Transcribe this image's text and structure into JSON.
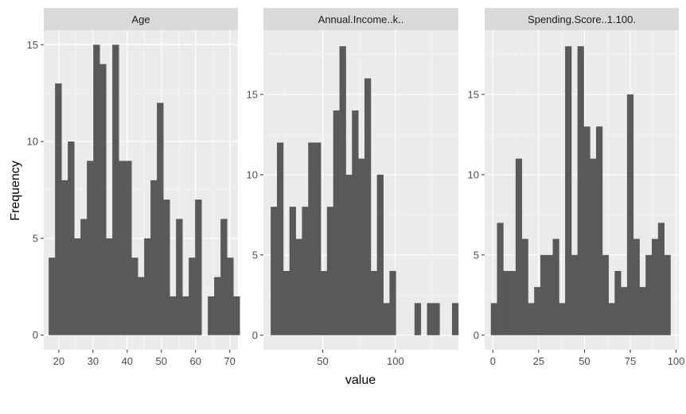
{
  "chart_data": {
    "type": "bar",
    "ylabel": "Frequency",
    "xlabel": "value",
    "grid": true,
    "colors": {
      "bar": "#595959",
      "panel": "#ebebeb",
      "strip": "#d9d9d9",
      "grid_major": "#ffffff",
      "grid_minor": "#f5f5f5",
      "tick": "#333333"
    },
    "panels": [
      {
        "title": "Age",
        "xlim": [
          15.6,
          72.4
        ],
        "ylim": [
          -0.75,
          15.75
        ],
        "xticks": [
          20,
          30,
          40,
          50,
          60,
          70
        ],
        "yticks": [
          0,
          5,
          10,
          15
        ],
        "bin_start": 17.0328,
        "bin_width": 1.8621,
        "counts": [
          4,
          13,
          8,
          10,
          5,
          6,
          9,
          15,
          14,
          5,
          15,
          9,
          9,
          4,
          3,
          5,
          8,
          12,
          7,
          2,
          6,
          2,
          4,
          7,
          0,
          2,
          3,
          6,
          4,
          2
        ]
      },
      {
        "title": "Annual.Income..k..",
        "xlim": [
          9.2,
          143.3
        ],
        "ylim": [
          -0.9,
          19.0
        ],
        "xticks": [
          50,
          100
        ],
        "yticks": [
          0,
          5,
          10,
          15
        ],
        "bin_start": 14.2,
        "bin_width": 4.3,
        "counts": [
          8,
          12,
          4,
          8,
          6,
          8,
          12,
          12,
          4,
          8,
          14,
          18,
          10,
          14,
          11,
          16,
          4,
          10,
          2,
          4,
          0,
          0,
          0,
          2,
          0,
          2,
          2,
          0,
          0,
          2
        ]
      },
      {
        "title": "Spending.Score..1.100.",
        "xlim": [
          -4.5,
          101.5
        ],
        "ylim": [
          -0.9,
          19.0
        ],
        "xticks": [
          0,
          25,
          50,
          75,
          100
        ],
        "yticks": [
          0,
          5,
          10,
          15
        ],
        "bin_start": -1.14,
        "bin_width": 3.38,
        "counts": [
          2,
          7,
          4,
          4,
          11,
          6,
          2,
          3,
          5,
          5,
          6,
          2,
          18,
          5,
          18,
          13,
          11,
          13,
          5,
          2,
          4,
          3,
          15,
          6,
          3,
          5,
          6,
          7,
          5,
          0
        ]
      }
    ]
  }
}
